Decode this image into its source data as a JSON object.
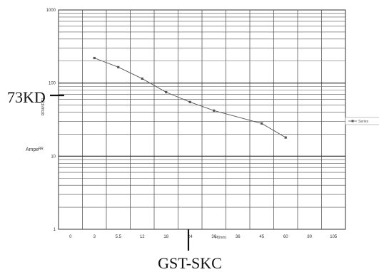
{
  "chart_data": {
    "type": "line",
    "title": "",
    "xlabel": "Ff(mm)",
    "ylabel": "RFNVIF(E)",
    "y_scale": "log",
    "ylim": [
      1,
      1000
    ],
    "grid": true,
    "x_ticks": [
      "0",
      "3",
      "5.5",
      "12",
      "18",
      "24",
      "30",
      "36",
      "45",
      "60",
      "80",
      "105"
    ],
    "y_ticks": [
      "1",
      "10",
      "100",
      "1000"
    ],
    "series": [
      {
        "name": "Series",
        "color": "#555555",
        "points": [
          {
            "x": "3",
            "y": 220
          },
          {
            "x": "5.5",
            "y": 165
          },
          {
            "x": "12",
            "y": 115
          },
          {
            "x": "18",
            "y": 75
          },
          {
            "x": "24",
            "y": 55
          },
          {
            "x": "30",
            "y": 42
          },
          {
            "x": "45",
            "y": 28
          },
          {
            "x": "60",
            "y": 18
          }
        ]
      }
    ],
    "legend_position": "right"
  },
  "annotations": {
    "left_code": "73KD",
    "bottom_code": "GST-SKC",
    "side_label": "Ampeᴿᴿ"
  }
}
